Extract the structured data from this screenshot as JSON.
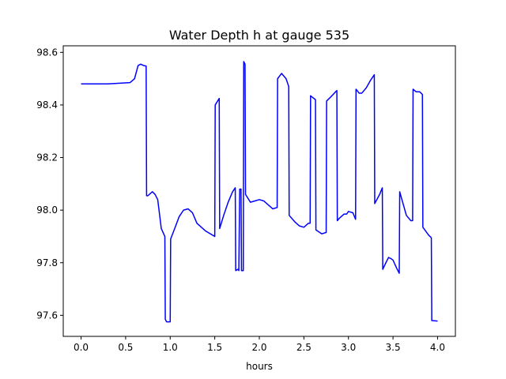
{
  "chart_data": {
    "type": "line",
    "title": "Water Depth h at gauge 535",
    "xlabel": "hours",
    "ylabel": "",
    "xlim": [
      -0.2,
      4.2
    ],
    "ylim": [
      97.52,
      98.625
    ],
    "x_ticks": [
      0.0,
      0.5,
      1.0,
      1.5,
      2.0,
      2.5,
      3.0,
      3.5,
      4.0
    ],
    "x_tick_labels": [
      "0.0",
      "0.5",
      "1.0",
      "1.5",
      "2.0",
      "2.5",
      "3.0",
      "3.5",
      "4.0"
    ],
    "y_ticks": [
      97.6,
      97.8,
      98.0,
      98.2,
      98.4,
      98.6
    ],
    "y_tick_labels": [
      "97.6",
      "97.8",
      "98.0",
      "98.2",
      "98.4",
      "98.6"
    ],
    "grid": false,
    "line_color": "#0000ff",
    "series": [
      {
        "x": [
          0.0,
          0.3,
          0.55,
          0.6,
          0.64,
          0.67,
          0.7,
          0.73,
          0.735,
          0.75,
          0.8,
          0.83,
          0.86,
          0.9,
          0.94,
          0.945,
          0.96,
          1.0,
          1.005,
          1.05,
          1.1,
          1.15,
          1.2,
          1.25,
          1.3,
          1.35,
          1.4,
          1.5,
          1.505,
          1.55,
          1.555,
          1.6,
          1.65,
          1.7,
          1.73,
          1.735,
          1.76,
          1.77,
          1.78,
          1.795,
          1.8,
          1.82,
          1.825,
          1.84,
          1.845,
          1.9,
          1.95,
          2.0,
          2.05,
          2.1,
          2.15,
          2.2,
          2.205,
          2.25,
          2.3,
          2.33,
          2.335,
          2.4,
          2.45,
          2.5,
          2.55,
          2.57,
          2.575,
          2.63,
          2.635,
          2.7,
          2.75,
          2.755,
          2.8,
          2.87,
          2.875,
          2.9,
          2.95,
          2.98,
          3.0,
          3.05,
          3.08,
          3.085,
          3.12,
          3.15,
          3.2,
          3.25,
          3.29,
          3.295,
          3.35,
          3.38,
          3.385,
          3.42,
          3.45,
          3.48,
          3.5,
          3.54,
          3.57,
          3.575,
          3.6,
          3.65,
          3.7,
          3.72,
          3.725,
          3.76,
          3.8,
          3.83,
          3.835,
          3.9,
          3.93,
          3.935,
          4.0
        ],
        "y": [
          98.48,
          98.48,
          98.485,
          98.5,
          98.55,
          98.555,
          98.55,
          98.548,
          98.055,
          98.055,
          98.07,
          98.06,
          98.04,
          97.93,
          97.9,
          97.585,
          97.575,
          97.575,
          97.89,
          97.93,
          97.975,
          98.0,
          98.005,
          97.99,
          97.95,
          97.935,
          97.92,
          97.9,
          98.4,
          98.425,
          97.93,
          97.98,
          98.03,
          98.07,
          98.085,
          97.77,
          97.775,
          97.77,
          98.08,
          98.08,
          97.77,
          97.77,
          98.565,
          98.555,
          98.06,
          98.03,
          98.035,
          98.04,
          98.035,
          98.02,
          98.005,
          98.01,
          98.5,
          98.52,
          98.5,
          98.47,
          97.98,
          97.955,
          97.94,
          97.935,
          97.95,
          97.95,
          98.435,
          98.42,
          97.925,
          97.91,
          97.915,
          98.415,
          98.43,
          98.455,
          97.96,
          97.97,
          97.985,
          97.985,
          97.995,
          97.99,
          97.965,
          98.46,
          98.445,
          98.445,
          98.465,
          98.495,
          98.515,
          98.025,
          98.06,
          98.085,
          97.775,
          97.8,
          97.82,
          97.815,
          97.81,
          97.78,
          97.76,
          98.07,
          98.04,
          97.98,
          97.96,
          97.96,
          98.46,
          98.45,
          98.45,
          98.44,
          97.935,
          97.905,
          97.895,
          97.58,
          97.578
        ]
      }
    ]
  }
}
